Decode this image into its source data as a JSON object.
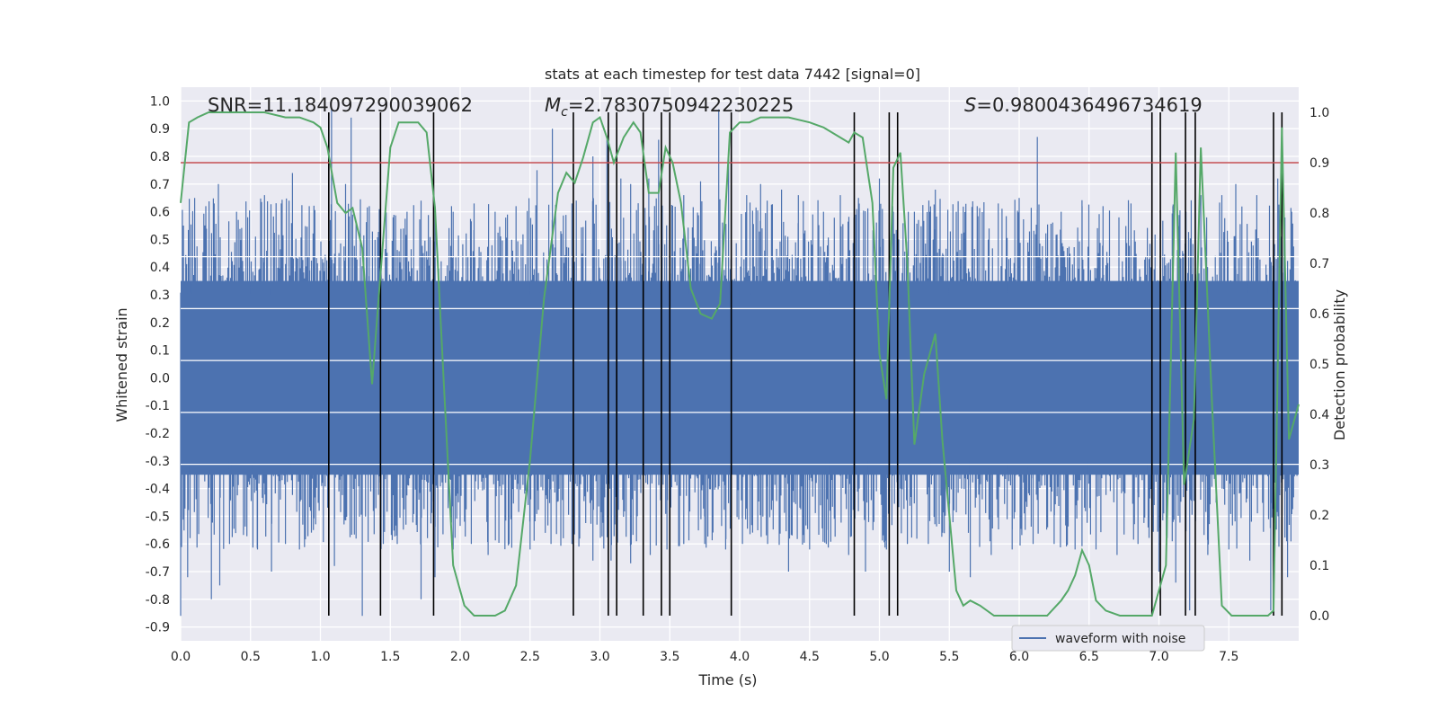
{
  "chart_data": {
    "type": "line",
    "title": "stats at each timestep for test data 7442 [signal=0]",
    "xlabel": "Time (s)",
    "ylabel": "Whitened strain",
    "y2label": "Detection probability",
    "xlim": [
      0.0,
      8.0
    ],
    "ylim": [
      -0.95,
      1.05
    ],
    "y2lim": [
      -0.05,
      1.05
    ],
    "x_ticks": [
      "0.0",
      "0.5",
      "1.0",
      "1.5",
      "2.0",
      "2.5",
      "3.0",
      "3.5",
      "4.0",
      "4.5",
      "5.0",
      "5.5",
      "6.0",
      "6.5",
      "7.0",
      "7.5"
    ],
    "y_ticks": [
      "-0.9",
      "-0.8",
      "-0.7",
      "-0.6",
      "-0.5",
      "-0.4",
      "-0.3",
      "-0.2",
      "-0.1",
      "0.0",
      "0.1",
      "0.2",
      "0.3",
      "0.4",
      "0.5",
      "0.6",
      "0.7",
      "0.8",
      "0.9",
      "1.0"
    ],
    "y2_ticks": [
      "0.0",
      "0.1",
      "0.2",
      "0.3",
      "0.4",
      "0.5",
      "0.6",
      "0.7",
      "0.8",
      "0.9",
      "1.0"
    ],
    "grid": true,
    "legend_position": "lower-right",
    "annotations": {
      "snr": "SNR=11.184097290039062",
      "mc_symbol": "M",
      "mc_subscript": "c",
      "mc_value": "=2.7830750942230225",
      "s_symbol": "S",
      "s_value": "=0.9800436496734619"
    },
    "threshold": 0.9,
    "threshold_color": "#c44e52",
    "series": [
      {
        "name": "waveform with noise",
        "kind": "strain",
        "color": "#4c72b0",
        "sample_rate_note": "dense noise, envelope approx",
        "envelope_upper": 0.35,
        "envelope_lower": -0.35,
        "peaks": [
          [
            0.02,
            0.55
          ],
          [
            0.1,
            0.65
          ],
          [
            0.18,
            0.62
          ],
          [
            0.27,
            0.7
          ],
          [
            0.4,
            0.6
          ],
          [
            0.48,
            0.58
          ],
          [
            0.6,
            0.66
          ],
          [
            0.72,
            0.63
          ],
          [
            0.8,
            0.74
          ],
          [
            0.92,
            0.62
          ],
          [
            1.08,
            0.97
          ],
          [
            1.18,
            0.7
          ],
          [
            1.22,
            0.94
          ],
          [
            1.35,
            0.62
          ],
          [
            1.52,
            0.58
          ],
          [
            1.62,
            0.6
          ],
          [
            1.72,
            0.64
          ],
          [
            1.82,
            0.62
          ],
          [
            1.95,
            0.6
          ],
          [
            2.1,
            0.63
          ],
          [
            2.25,
            0.6
          ],
          [
            2.4,
            0.62
          ],
          [
            2.55,
            0.75
          ],
          [
            2.66,
            0.9
          ],
          [
            2.8,
            0.63
          ],
          [
            2.95,
            0.8
          ],
          [
            3.05,
            0.86
          ],
          [
            3.15,
            0.72
          ],
          [
            3.22,
            0.7
          ],
          [
            3.35,
            0.72
          ],
          [
            3.42,
            0.86
          ],
          [
            3.5,
            0.77
          ],
          [
            3.6,
            0.66
          ],
          [
            3.72,
            0.71
          ],
          [
            3.85,
            0.97
          ],
          [
            3.92,
            0.79
          ],
          [
            4.05,
            0.66
          ],
          [
            4.15,
            0.7
          ],
          [
            4.3,
            0.68
          ],
          [
            4.42,
            0.66
          ],
          [
            4.6,
            0.6
          ],
          [
            4.72,
            0.66
          ],
          [
            4.85,
            0.65
          ],
          [
            5.0,
            0.72
          ],
          [
            5.1,
            0.6
          ],
          [
            5.25,
            0.6
          ],
          [
            5.4,
            0.68
          ],
          [
            5.55,
            0.6
          ],
          [
            5.7,
            0.62
          ],
          [
            5.85,
            0.63
          ],
          [
            6.0,
            0.65
          ],
          [
            6.13,
            0.87
          ],
          [
            6.3,
            0.6
          ],
          [
            6.45,
            0.62
          ],
          [
            6.6,
            0.62
          ],
          [
            6.8,
            0.63
          ],
          [
            6.95,
            0.6
          ],
          [
            7.1,
            0.62
          ],
          [
            7.3,
            0.66
          ],
          [
            7.45,
            0.66
          ],
          [
            7.55,
            0.7
          ],
          [
            7.7,
            0.66
          ],
          [
            7.85,
            0.72
          ],
          [
            7.95,
            0.6
          ]
        ],
        "troughs": [
          [
            0.0,
            -0.86
          ],
          [
            0.05,
            -0.72
          ],
          [
            0.22,
            -0.8
          ],
          [
            0.28,
            -0.75
          ],
          [
            0.35,
            -0.6
          ],
          [
            0.45,
            -0.55
          ],
          [
            0.55,
            -0.62
          ],
          [
            0.65,
            -0.7
          ],
          [
            0.75,
            -0.6
          ],
          [
            0.85,
            -0.62
          ],
          [
            0.95,
            -0.55
          ],
          [
            1.1,
            -0.68
          ],
          [
            1.3,
            -0.86
          ],
          [
            1.45,
            -0.6
          ],
          [
            1.55,
            -0.6
          ],
          [
            1.72,
            -0.8
          ],
          [
            1.82,
            -0.72
          ],
          [
            1.95,
            -0.62
          ],
          [
            2.08,
            -0.6
          ],
          [
            2.2,
            -0.64
          ],
          [
            2.35,
            -0.6
          ],
          [
            2.5,
            -0.62
          ],
          [
            2.65,
            -0.6
          ],
          [
            2.8,
            -0.6
          ],
          [
            2.95,
            -0.66
          ],
          [
            3.08,
            -0.66
          ],
          [
            3.22,
            -0.67
          ],
          [
            3.36,
            -0.64
          ],
          [
            3.48,
            -0.62
          ],
          [
            3.6,
            -0.6
          ],
          [
            3.75,
            -0.6
          ],
          [
            3.9,
            -0.62
          ],
          [
            4.02,
            -0.6
          ],
          [
            4.2,
            -0.6
          ],
          [
            4.35,
            -0.7
          ],
          [
            4.5,
            -0.62
          ],
          [
            4.62,
            -0.6
          ],
          [
            4.78,
            -0.64
          ],
          [
            4.9,
            -0.7
          ],
          [
            5.05,
            -0.62
          ],
          [
            5.2,
            -0.6
          ],
          [
            5.35,
            -0.6
          ],
          [
            5.5,
            -0.7
          ],
          [
            5.65,
            -0.72
          ],
          [
            5.8,
            -0.64
          ],
          [
            5.95,
            -0.62
          ],
          [
            6.1,
            -0.6
          ],
          [
            6.25,
            -0.6
          ],
          [
            6.4,
            -0.62
          ],
          [
            6.55,
            -0.62
          ],
          [
            6.7,
            -0.64
          ],
          [
            6.85,
            -0.6
          ],
          [
            7.0,
            -0.7
          ],
          [
            7.12,
            -0.74
          ],
          [
            7.22,
            -0.84
          ],
          [
            7.35,
            -0.64
          ],
          [
            7.5,
            -0.62
          ],
          [
            7.65,
            -0.66
          ],
          [
            7.8,
            -0.84
          ],
          [
            7.92,
            -0.72
          ]
        ]
      },
      {
        "name": "",
        "kind": "probability",
        "color": "#55a868",
        "axis": "right",
        "x": [
          0.0,
          0.06,
          0.12,
          0.2,
          0.3,
          0.45,
          0.6,
          0.75,
          0.85,
          0.95,
          1.0,
          1.05,
          1.12,
          1.18,
          1.23,
          1.3,
          1.37,
          1.43,
          1.5,
          1.56,
          1.63,
          1.7,
          1.76,
          1.82,
          1.88,
          1.95,
          2.03,
          2.1,
          2.17,
          2.25,
          2.32,
          2.4,
          2.5,
          2.6,
          2.7,
          2.76,
          2.82,
          2.88,
          2.95,
          3.0,
          3.05,
          3.1,
          3.17,
          3.24,
          3.29,
          3.35,
          3.42,
          3.47,
          3.52,
          3.58,
          3.65,
          3.72,
          3.8,
          3.86,
          3.93,
          4.0,
          4.07,
          4.15,
          4.25,
          4.35,
          4.5,
          4.6,
          4.72,
          4.78,
          4.82,
          4.88,
          4.95,
          5.0,
          5.05,
          5.1,
          5.15,
          5.2,
          5.25,
          5.32,
          5.4,
          5.45,
          5.55,
          5.6,
          5.65,
          5.72,
          5.82,
          5.9,
          6.0,
          6.1,
          6.2,
          6.3,
          6.35,
          6.4,
          6.45,
          6.5,
          6.55,
          6.62,
          6.72,
          6.85,
          6.95,
          7.05,
          7.12,
          7.18,
          7.25,
          7.3,
          7.38,
          7.45,
          7.52,
          7.6,
          7.7,
          7.78,
          7.82,
          7.88,
          7.93,
          8.0
        ],
        "y": [
          0.82,
          0.98,
          0.99,
          1.0,
          1.0,
          1.0,
          1.0,
          0.99,
          0.99,
          0.98,
          0.97,
          0.93,
          0.82,
          0.8,
          0.81,
          0.73,
          0.46,
          0.68,
          0.93,
          0.98,
          0.98,
          0.98,
          0.96,
          0.81,
          0.48,
          0.1,
          0.02,
          0.0,
          0.0,
          0.0,
          0.01,
          0.06,
          0.31,
          0.63,
          0.84,
          0.88,
          0.86,
          0.91,
          0.98,
          0.99,
          0.95,
          0.9,
          0.95,
          0.98,
          0.96,
          0.84,
          0.84,
          0.93,
          0.9,
          0.82,
          0.65,
          0.6,
          0.59,
          0.62,
          0.96,
          0.98,
          0.98,
          0.99,
          0.99,
          0.99,
          0.98,
          0.97,
          0.95,
          0.94,
          0.96,
          0.95,
          0.82,
          0.52,
          0.43,
          0.89,
          0.92,
          0.7,
          0.34,
          0.48,
          0.56,
          0.35,
          0.05,
          0.02,
          0.03,
          0.02,
          0.0,
          0.0,
          0.0,
          0.0,
          0.0,
          0.03,
          0.05,
          0.08,
          0.13,
          0.1,
          0.03,
          0.01,
          0.0,
          0.0,
          0.0,
          0.1,
          0.92,
          0.26,
          0.39,
          0.93,
          0.42,
          0.02,
          0.0,
          0.0,
          0.0,
          0.0,
          0.01,
          0.97,
          0.35,
          0.42
        ]
      }
    ],
    "vertical_lines_x": [
      1.06,
      1.43,
      1.81,
      2.81,
      3.06,
      3.12,
      3.31,
      3.44,
      3.5,
      3.94,
      4.82,
      5.07,
      5.13,
      6.95,
      7.01,
      7.19,
      7.26,
      7.82,
      7.88
    ]
  }
}
